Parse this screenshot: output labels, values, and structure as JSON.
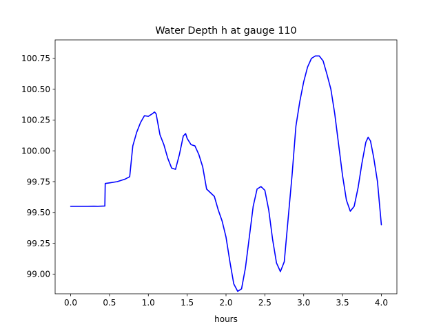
{
  "chart_data": {
    "type": "line",
    "title": "Water Depth h at gauge 110",
    "xlabel": "hours",
    "ylabel": "",
    "xlim": [
      -0.2,
      4.2
    ],
    "ylim": [
      98.84,
      100.9
    ],
    "grid": false,
    "line_color": "#0000ff",
    "xticks": [
      {
        "value": 0.0,
        "label": "0.0"
      },
      {
        "value": 0.5,
        "label": "0.5"
      },
      {
        "value": 1.0,
        "label": "1.0"
      },
      {
        "value": 1.5,
        "label": "1.5"
      },
      {
        "value": 2.0,
        "label": "2.0"
      },
      {
        "value": 2.5,
        "label": "2.5"
      },
      {
        "value": 3.0,
        "label": "3.0"
      },
      {
        "value": 3.5,
        "label": "3.5"
      },
      {
        "value": 4.0,
        "label": "4.0"
      }
    ],
    "yticks": [
      {
        "value": 99.0,
        "label": "99.00"
      },
      {
        "value": 99.25,
        "label": "99.25"
      },
      {
        "value": 99.5,
        "label": "99.50"
      },
      {
        "value": 99.75,
        "label": "99.75"
      },
      {
        "value": 100.0,
        "label": "100.00"
      },
      {
        "value": 100.25,
        "label": "100.25"
      },
      {
        "value": 100.5,
        "label": "100.50"
      },
      {
        "value": 100.75,
        "label": "100.75"
      }
    ],
    "series": [
      {
        "x": [
          0.0,
          0.1,
          0.2,
          0.3,
          0.35,
          0.44,
          0.445,
          0.5,
          0.6,
          0.7,
          0.76,
          0.8,
          0.85,
          0.9,
          0.95,
          1.0,
          1.05,
          1.08,
          1.1,
          1.15,
          1.2,
          1.25,
          1.3,
          1.35,
          1.4,
          1.45,
          1.48,
          1.5,
          1.55,
          1.6,
          1.65,
          1.7,
          1.75,
          1.8,
          1.85,
          1.9,
          1.95,
          2.0,
          2.05,
          2.1,
          2.15,
          2.2,
          2.25,
          2.3,
          2.35,
          2.4,
          2.45,
          2.5,
          2.55,
          2.6,
          2.65,
          2.7,
          2.75,
          2.8,
          2.85,
          2.9,
          2.95,
          3.0,
          3.05,
          3.1,
          3.15,
          3.2,
          3.25,
          3.3,
          3.35,
          3.4,
          3.45,
          3.5,
          3.55,
          3.6,
          3.65,
          3.7,
          3.75,
          3.8,
          3.83,
          3.86,
          3.9,
          3.95,
          4.0
        ],
        "y": [
          99.55,
          99.55,
          99.55,
          99.551,
          99.55,
          99.552,
          99.735,
          99.74,
          99.75,
          99.77,
          99.79,
          100.04,
          100.15,
          100.23,
          100.285,
          100.28,
          100.3,
          100.315,
          100.3,
          100.13,
          100.05,
          99.94,
          99.86,
          99.85,
          99.97,
          100.12,
          100.14,
          100.1,
          100.05,
          100.04,
          99.97,
          99.87,
          99.69,
          99.66,
          99.63,
          99.52,
          99.43,
          99.3,
          99.1,
          98.92,
          98.86,
          98.88,
          99.05,
          99.3,
          99.55,
          99.69,
          99.71,
          99.68,
          99.52,
          99.28,
          99.09,
          99.02,
          99.1,
          99.45,
          99.8,
          100.2,
          100.4,
          100.56,
          100.68,
          100.75,
          100.77,
          100.77,
          100.73,
          100.62,
          100.5,
          100.3,
          100.05,
          99.8,
          99.6,
          99.51,
          99.55,
          99.7,
          99.9,
          100.07,
          100.11,
          100.08,
          99.95,
          99.75,
          99.4
        ]
      }
    ]
  }
}
